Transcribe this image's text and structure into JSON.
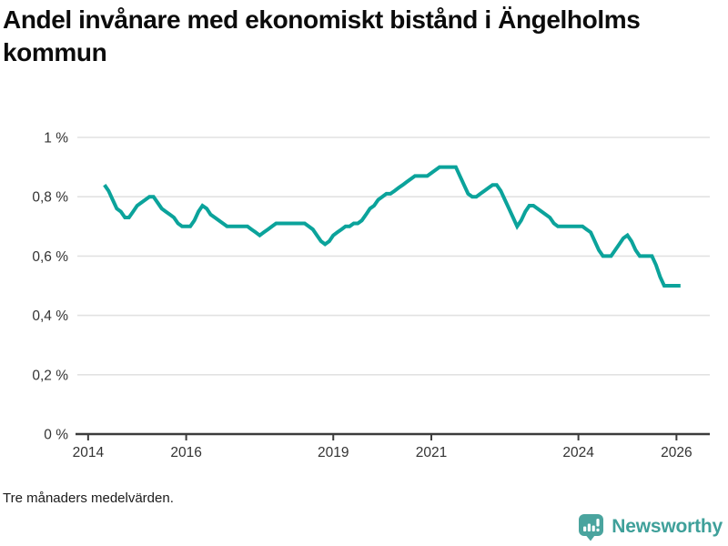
{
  "title": "Andel invånare med ekonomiskt bistånd i Ängelholms kommun",
  "footnote": "Tre månaders medelvärden.",
  "branding": {
    "logo_text": "Newsworthy",
    "logo_icon": "bar-chart-speech-bubble-icon",
    "brand_color": "#43a29b"
  },
  "colors": {
    "line": "#0ba39b",
    "grid": "#e2e2e2",
    "axis": "#3c3c3c",
    "tick_label": "#333333",
    "title": "#0c0c0c"
  },
  "chart_data": {
    "type": "line",
    "title": "Andel invånare med ekonomiskt bistånd i Ängelholms kommun",
    "note": "Tre månaders medelvärden.",
    "grid": "horizontal",
    "legend": "none",
    "x_range": [
      2013.78,
      2026.68
    ],
    "y_range": [
      0,
      1
    ],
    "x_ticks": {
      "values": [
        2014,
        2016,
        2019,
        2021,
        2024,
        2026
      ],
      "labels": [
        "2014",
        "2016",
        "2019",
        "2021",
        "2024",
        "2026"
      ]
    },
    "y_ticks": {
      "values": [
        0,
        0.2,
        0.4,
        0.6,
        0.8,
        1
      ],
      "labels": [
        "0 %",
        "0,2 %",
        "0,4 %",
        "0,6 %",
        "0,8 %",
        "1 %"
      ]
    },
    "unit": "% av invånare",
    "series": [
      {
        "points": [
          [
            2014.333,
            0.84
          ],
          [
            2014.417,
            0.82
          ],
          [
            2014.5,
            0.79
          ],
          [
            2014.583,
            0.76
          ],
          [
            2014.667,
            0.75
          ],
          [
            2014.75,
            0.73
          ],
          [
            2014.833,
            0.73
          ],
          [
            2014.917,
            0.75
          ],
          [
            2015.0,
            0.77
          ],
          [
            2015.083,
            0.78
          ],
          [
            2015.167,
            0.79
          ],
          [
            2015.25,
            0.8
          ],
          [
            2015.333,
            0.8
          ],
          [
            2015.417,
            0.78
          ],
          [
            2015.5,
            0.76
          ],
          [
            2015.583,
            0.75
          ],
          [
            2015.667,
            0.74
          ],
          [
            2015.75,
            0.73
          ],
          [
            2015.833,
            0.71
          ],
          [
            2015.917,
            0.7
          ],
          [
            2016.0,
            0.7
          ],
          [
            2016.083,
            0.7
          ],
          [
            2016.167,
            0.72
          ],
          [
            2016.25,
            0.75
          ],
          [
            2016.333,
            0.77
          ],
          [
            2016.417,
            0.76
          ],
          [
            2016.5,
            0.74
          ],
          [
            2016.583,
            0.73
          ],
          [
            2016.667,
            0.72
          ],
          [
            2016.75,
            0.71
          ],
          [
            2016.833,
            0.7
          ],
          [
            2016.917,
            0.7
          ],
          [
            2017.0,
            0.7
          ],
          [
            2017.083,
            0.7
          ],
          [
            2017.167,
            0.7
          ],
          [
            2017.25,
            0.7
          ],
          [
            2017.333,
            0.69
          ],
          [
            2017.417,
            0.68
          ],
          [
            2017.5,
            0.67
          ],
          [
            2017.583,
            0.68
          ],
          [
            2017.667,
            0.69
          ],
          [
            2017.75,
            0.7
          ],
          [
            2017.833,
            0.71
          ],
          [
            2017.917,
            0.71
          ],
          [
            2018.0,
            0.71
          ],
          [
            2018.083,
            0.71
          ],
          [
            2018.167,
            0.71
          ],
          [
            2018.25,
            0.71
          ],
          [
            2018.333,
            0.71
          ],
          [
            2018.417,
            0.71
          ],
          [
            2018.5,
            0.7
          ],
          [
            2018.583,
            0.69
          ],
          [
            2018.667,
            0.67
          ],
          [
            2018.75,
            0.65
          ],
          [
            2018.833,
            0.64
          ],
          [
            2018.917,
            0.65
          ],
          [
            2019.0,
            0.67
          ],
          [
            2019.083,
            0.68
          ],
          [
            2019.167,
            0.69
          ],
          [
            2019.25,
            0.7
          ],
          [
            2019.333,
            0.7
          ],
          [
            2019.417,
            0.71
          ],
          [
            2019.5,
            0.71
          ],
          [
            2019.583,
            0.72
          ],
          [
            2019.667,
            0.74
          ],
          [
            2019.75,
            0.76
          ],
          [
            2019.833,
            0.77
          ],
          [
            2019.917,
            0.79
          ],
          [
            2020.0,
            0.8
          ],
          [
            2020.083,
            0.81
          ],
          [
            2020.167,
            0.81
          ],
          [
            2020.25,
            0.82
          ],
          [
            2020.333,
            0.83
          ],
          [
            2020.417,
            0.84
          ],
          [
            2020.5,
            0.85
          ],
          [
            2020.583,
            0.86
          ],
          [
            2020.667,
            0.87
          ],
          [
            2020.75,
            0.87
          ],
          [
            2020.833,
            0.87
          ],
          [
            2020.917,
            0.87
          ],
          [
            2021.0,
            0.88
          ],
          [
            2021.083,
            0.89
          ],
          [
            2021.167,
            0.9
          ],
          [
            2021.25,
            0.9
          ],
          [
            2021.333,
            0.9
          ],
          [
            2021.417,
            0.9
          ],
          [
            2021.5,
            0.9
          ],
          [
            2021.583,
            0.87
          ],
          [
            2021.667,
            0.84
          ],
          [
            2021.75,
            0.81
          ],
          [
            2021.833,
            0.8
          ],
          [
            2021.917,
            0.8
          ],
          [
            2022.0,
            0.81
          ],
          [
            2022.083,
            0.82
          ],
          [
            2022.167,
            0.83
          ],
          [
            2022.25,
            0.84
          ],
          [
            2022.333,
            0.84
          ],
          [
            2022.417,
            0.82
          ],
          [
            2022.5,
            0.79
          ],
          [
            2022.583,
            0.76
          ],
          [
            2022.667,
            0.73
          ],
          [
            2022.75,
            0.7
          ],
          [
            2022.833,
            0.72
          ],
          [
            2022.917,
            0.75
          ],
          [
            2023.0,
            0.77
          ],
          [
            2023.083,
            0.77
          ],
          [
            2023.167,
            0.76
          ],
          [
            2023.25,
            0.75
          ],
          [
            2023.333,
            0.74
          ],
          [
            2023.417,
            0.73
          ],
          [
            2023.5,
            0.71
          ],
          [
            2023.583,
            0.7
          ],
          [
            2023.667,
            0.7
          ],
          [
            2023.75,
            0.7
          ],
          [
            2023.833,
            0.7
          ],
          [
            2023.917,
            0.7
          ],
          [
            2024.0,
            0.7
          ],
          [
            2024.083,
            0.7
          ],
          [
            2024.167,
            0.69
          ],
          [
            2024.25,
            0.68
          ],
          [
            2024.333,
            0.65
          ],
          [
            2024.417,
            0.62
          ],
          [
            2024.5,
            0.6
          ],
          [
            2024.583,
            0.6
          ],
          [
            2024.667,
            0.6
          ],
          [
            2024.75,
            0.62
          ],
          [
            2024.833,
            0.64
          ],
          [
            2024.917,
            0.66
          ],
          [
            2025.0,
            0.67
          ],
          [
            2025.083,
            0.65
          ],
          [
            2025.167,
            0.62
          ],
          [
            2025.25,
            0.6
          ],
          [
            2025.333,
            0.6
          ],
          [
            2025.417,
            0.6
          ],
          [
            2025.5,
            0.6
          ],
          [
            2025.583,
            0.57
          ],
          [
            2025.667,
            0.53
          ],
          [
            2025.75,
            0.5
          ],
          [
            2025.833,
            0.5
          ],
          [
            2025.917,
            0.5
          ],
          [
            2026.0,
            0.5
          ],
          [
            2026.083,
            0.5
          ]
        ]
      }
    ]
  }
}
